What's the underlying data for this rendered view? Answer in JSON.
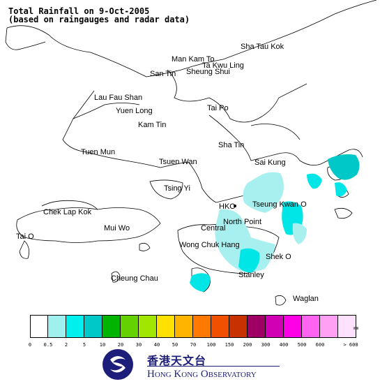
{
  "title": {
    "line1": "Total Rainfall on 9-Oct-2005",
    "line2": "(based on raingauges and radar data)"
  },
  "places": [
    {
      "key": "sha_tau_kok",
      "text": "Sha Tau Kok"
    },
    {
      "key": "man_kam_to",
      "text": "Man Kam To"
    },
    {
      "key": "ta_kwu_ling",
      "text": "Ta Kwu Ling"
    },
    {
      "key": "san_tin",
      "text": "San Tin"
    },
    {
      "key": "sheung_shui",
      "text": "Sheung Shui"
    },
    {
      "key": "lau_fau_shan",
      "text": "Lau Fau Shan"
    },
    {
      "key": "yuen_long",
      "text": "Yuen Long"
    },
    {
      "key": "tai_po",
      "text": "Tai Po"
    },
    {
      "key": "kam_tin",
      "text": "Kam Tin"
    },
    {
      "key": "sha_tin",
      "text": "Sha Tin"
    },
    {
      "key": "tuen_mun",
      "text": "Tuen Mun"
    },
    {
      "key": "tsuen_wan",
      "text": "Tsuen Wan"
    },
    {
      "key": "sai_kung",
      "text": "Sai Kung"
    },
    {
      "key": "tsing_yi",
      "text": "Tsing Yi"
    },
    {
      "key": "hko",
      "text": "HKO"
    },
    {
      "key": "tseung_kwan_o",
      "text": "Tseung Kwan O"
    },
    {
      "key": "chek_lap_kok",
      "text": "Chek Lap Kok"
    },
    {
      "key": "north_point",
      "text": "North Point"
    },
    {
      "key": "mui_wo",
      "text": "Mui Wo"
    },
    {
      "key": "central",
      "text": "Central"
    },
    {
      "key": "tai_o",
      "text": "Tai O"
    },
    {
      "key": "wong_chuk_hang",
      "text": "Wong Chuk Hang"
    },
    {
      "key": "shek_o",
      "text": "Shek O"
    },
    {
      "key": "stanley",
      "text": "Stanley"
    },
    {
      "key": "cheung_chau",
      "text": "Cheung Chau"
    },
    {
      "key": "waglan",
      "text": "Waglan"
    }
  ],
  "legend": {
    "unit": "mm",
    "colors": [
      "#ffffff",
      "#a0f0f0",
      "#00f0f0",
      "#00c8c8",
      "#00b400",
      "#64d200",
      "#a0e600",
      "#ffe100",
      "#ffb400",
      "#ff7800",
      "#f05000",
      "#c83200",
      "#a00064",
      "#d200b4",
      "#ff00e6",
      "#ff64f0",
      "#ffa0f5",
      "#ffe1ff"
    ],
    "ticks": [
      "0",
      "0.5",
      "2",
      "5",
      "10",
      "20",
      "30",
      "40",
      "50",
      "70",
      "100",
      "150",
      "200",
      "300",
      "400",
      "500",
      "600",
      "> 600"
    ]
  },
  "rain_colors": {
    "light": "#a8f0f0",
    "medium": "#00e6e6",
    "heavy": "#00c8c8"
  },
  "organisation": {
    "name_zh": "香港天文台",
    "name_en": "Hong Kong Observatory"
  }
}
